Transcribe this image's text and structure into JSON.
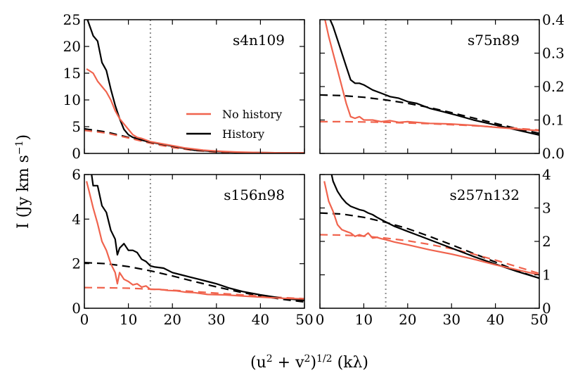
{
  "figure": {
    "ylabel": "I (Jy km s",
    "ylabel_sup": "−1",
    "ylabel_close": ")",
    "xlabel_a": "(u",
    "xlabel_a_sup": "2",
    "xlabel_b": " + v",
    "xlabel_b_sup": "2",
    "xlabel_c": ")",
    "xlabel_c_sup": "1/2",
    "xlabel_d": " (kλ)"
  },
  "legend": {
    "no_history": "No history",
    "history": "History"
  },
  "colors": {
    "no_history": "#f0634d",
    "history": "#000000",
    "dotted": "#8c8c8c"
  },
  "chart_data": [
    {
      "type": "line",
      "title": "s4n109",
      "xlim": [
        0,
        50
      ],
      "ylim": [
        0,
        25
      ],
      "xticks": [
        0,
        10,
        20,
        30,
        40,
        50
      ],
      "yticks": [
        0,
        5,
        10,
        15,
        20,
        25
      ],
      "ytick_side": "left",
      "vline": 15,
      "legend": "lower-right",
      "series": [
        {
          "name": "History",
          "style": "solid",
          "color": "#000000",
          "x": [
            0.5,
            2,
            3,
            4,
            5,
            6,
            7,
            8,
            9,
            10,
            11,
            12,
            13,
            14,
            15,
            17,
            19,
            21,
            23,
            25,
            27,
            29,
            32,
            35,
            40,
            45,
            50
          ],
          "y": [
            25.5,
            22,
            21,
            17,
            15.5,
            12,
            9,
            6.5,
            4.5,
            3.5,
            3,
            2.8,
            2.5,
            2.3,
            2.1,
            1.8,
            1.5,
            1.2,
            0.9,
            0.6,
            0.5,
            0.4,
            0.3,
            0.2,
            0.15,
            0.1,
            0.1
          ]
        },
        {
          "name": "No history",
          "style": "solid",
          "color": "#f0634d",
          "x": [
            0.5,
            2,
            3,
            4,
            5,
            6,
            7,
            8,
            9,
            10,
            11,
            12,
            13,
            14,
            15,
            17,
            19,
            21,
            23,
            25,
            27,
            29,
            32,
            35,
            40,
            45,
            50
          ],
          "y": [
            15.8,
            15,
            13.5,
            12.5,
            11.5,
            10,
            8,
            6.5,
            5.5,
            4.5,
            3.5,
            3,
            2.8,
            2.5,
            2.2,
            1.9,
            1.6,
            1.3,
            1.0,
            0.8,
            0.6,
            0.5,
            0.35,
            0.25,
            0.15,
            0.1,
            0.1
          ]
        },
        {
          "name": "History fit",
          "style": "dashed",
          "color": "#000000",
          "x": [
            0,
            5,
            10,
            15,
            20,
            25,
            30,
            35,
            40,
            45,
            50
          ],
          "y": [
            4.6,
            4.0,
            3.0,
            2.0,
            1.2,
            0.6,
            0.3,
            0.1,
            0.05,
            0.02,
            0.01
          ]
        },
        {
          "name": "No history fit",
          "style": "dashed",
          "color": "#f0634d",
          "x": [
            0,
            5,
            10,
            15,
            20,
            25,
            30,
            35,
            40,
            45,
            50
          ],
          "y": [
            4.3,
            3.8,
            2.9,
            1.9,
            1.1,
            0.55,
            0.25,
            0.1,
            0.05,
            0.02,
            0.01
          ]
        }
      ]
    },
    {
      "type": "line",
      "title": "s75n89",
      "xlim": [
        0,
        50
      ],
      "ylim": [
        0,
        0.4
      ],
      "xticks": [
        0,
        10,
        20,
        30,
        40,
        50
      ],
      "yticks": [
        0.0,
        0.1,
        0.2,
        0.3,
        0.4
      ],
      "ytick_side": "right",
      "vline": 15,
      "series": [
        {
          "name": "History",
          "style": "solid",
          "color": "#000000",
          "x": [
            2,
            3,
            4,
            5,
            6,
            7,
            8,
            9,
            10,
            12,
            14,
            16,
            18,
            20,
            22,
            25,
            28,
            31,
            35,
            40,
            45,
            50
          ],
          "y": [
            0.41,
            0.38,
            0.34,
            0.3,
            0.26,
            0.22,
            0.21,
            0.21,
            0.205,
            0.19,
            0.18,
            0.17,
            0.165,
            0.155,
            0.15,
            0.135,
            0.125,
            0.115,
            0.1,
            0.085,
            0.07,
            0.055
          ]
        },
        {
          "name": "No history",
          "style": "solid",
          "color": "#f0634d",
          "x": [
            1,
            2,
            3,
            4,
            5,
            6,
            7,
            8,
            9,
            10,
            12,
            14,
            16,
            18,
            20,
            25,
            30,
            35,
            40,
            45,
            50
          ],
          "y": [
            0.41,
            0.35,
            0.3,
            0.25,
            0.2,
            0.15,
            0.11,
            0.105,
            0.11,
            0.1,
            0.1,
            0.095,
            0.098,
            0.093,
            0.095,
            0.09,
            0.088,
            0.084,
            0.078,
            0.073,
            0.068
          ]
        },
        {
          "name": "History fit",
          "style": "dashed",
          "color": "#000000",
          "x": [
            0,
            5,
            10,
            15,
            20,
            25,
            30,
            35,
            40,
            45,
            50
          ],
          "y": [
            0.175,
            0.173,
            0.168,
            0.16,
            0.15,
            0.137,
            0.122,
            0.106,
            0.09,
            0.074,
            0.06
          ]
        },
        {
          "name": "No history fit",
          "style": "dashed",
          "color": "#f0634d",
          "x": [
            0,
            5,
            10,
            15,
            20,
            25,
            30,
            35,
            40,
            45,
            50
          ],
          "y": [
            0.095,
            0.095,
            0.094,
            0.093,
            0.091,
            0.089,
            0.086,
            0.083,
            0.079,
            0.075,
            0.07
          ]
        }
      ]
    },
    {
      "type": "line",
      "title": "s156n98",
      "xlim": [
        0,
        50
      ],
      "ylim": [
        0,
        6
      ],
      "xticks": [
        0,
        10,
        20,
        30,
        40,
        50
      ],
      "yticks": [
        0,
        2,
        4,
        6
      ],
      "ytick_side": "left",
      "vline": 15,
      "series": [
        {
          "name": "History",
          "style": "solid",
          "color": "#000000",
          "x": [
            1.5,
            2,
            3,
            4,
            5,
            6,
            7,
            7.5,
            8,
            9,
            10,
            11,
            12,
            13,
            14,
            15,
            16,
            18,
            20,
            22,
            24,
            26,
            28,
            30,
            33,
            36,
            40,
            45,
            50
          ],
          "y": [
            6.2,
            5.5,
            5.5,
            4.6,
            4.3,
            3.5,
            3.1,
            2.4,
            2.7,
            2.9,
            2.6,
            2.6,
            2.5,
            2.2,
            2.1,
            1.9,
            1.85,
            1.8,
            1.6,
            1.5,
            1.4,
            1.3,
            1.2,
            1.1,
            0.9,
            0.75,
            0.6,
            0.45,
            0.35
          ]
        },
        {
          "name": "No history",
          "style": "solid",
          "color": "#f0634d",
          "x": [
            0.5,
            1,
            2,
            3,
            4,
            5,
            6,
            7,
            7.5,
            8,
            9,
            10,
            11,
            12,
            13,
            14,
            15,
            17,
            19,
            21,
            23,
            25,
            28,
            32,
            36,
            40,
            45,
            50
          ],
          "y": [
            5.7,
            5.3,
            4.5,
            3.8,
            3.0,
            2.6,
            2.0,
            1.6,
            1.1,
            1.6,
            1.3,
            1.2,
            1.05,
            1.1,
            0.95,
            1.0,
            0.85,
            0.85,
            0.8,
            0.78,
            0.72,
            0.7,
            0.62,
            0.6,
            0.55,
            0.5,
            0.45,
            0.42
          ]
        },
        {
          "name": "History fit",
          "style": "dashed",
          "color": "#000000",
          "x": [
            0,
            5,
            10,
            15,
            20,
            25,
            30,
            35,
            40,
            45,
            50
          ],
          "y": [
            2.05,
            2.0,
            1.87,
            1.68,
            1.45,
            1.2,
            0.96,
            0.74,
            0.55,
            0.4,
            0.28
          ]
        },
        {
          "name": "No history fit",
          "style": "dashed",
          "color": "#f0634d",
          "x": [
            0,
            5,
            10,
            15,
            20,
            25,
            30,
            35,
            40,
            45,
            50
          ],
          "y": [
            0.93,
            0.92,
            0.9,
            0.86,
            0.81,
            0.75,
            0.68,
            0.61,
            0.54,
            0.48,
            0.43
          ]
        }
      ]
    },
    {
      "type": "line",
      "title": "s257n132",
      "xlim": [
        0,
        50
      ],
      "ylim": [
        0,
        4
      ],
      "xticks": [
        0,
        10,
        20,
        30,
        40,
        50
      ],
      "yticks": [
        0,
        1,
        2,
        3,
        4
      ],
      "ytick_side": "right",
      "vline": 15,
      "series": [
        {
          "name": "History",
          "style": "solid",
          "color": "#000000",
          "x": [
            2.5,
            3,
            4,
            5,
            6,
            7,
            8,
            9,
            10,
            11,
            12,
            13,
            14,
            15,
            17,
            20,
            23,
            26,
            30,
            35,
            40,
            45,
            50
          ],
          "y": [
            4.1,
            3.8,
            3.5,
            3.3,
            3.15,
            3.05,
            3.0,
            2.95,
            2.92,
            2.85,
            2.8,
            2.72,
            2.65,
            2.58,
            2.45,
            2.3,
            2.15,
            2.0,
            1.8,
            1.55,
            1.32,
            1.1,
            0.9
          ]
        },
        {
          "name": "No history",
          "style": "solid",
          "color": "#f0634d",
          "x": [
            1,
            2,
            3,
            4,
            5,
            6,
            7,
            8,
            9,
            10,
            11,
            12,
            13,
            14,
            15,
            17,
            20,
            25,
            30,
            35,
            40,
            45,
            50
          ],
          "y": [
            3.8,
            3.2,
            2.9,
            2.5,
            2.35,
            2.3,
            2.25,
            2.15,
            2.2,
            2.15,
            2.25,
            2.1,
            2.12,
            2.08,
            2.05,
            1.98,
            1.9,
            1.75,
            1.62,
            1.47,
            1.3,
            1.15,
            1.0
          ]
        },
        {
          "name": "History fit",
          "style": "dashed",
          "color": "#000000",
          "x": [
            0,
            5,
            10,
            15,
            20,
            25,
            30,
            35,
            40,
            45,
            50
          ],
          "y": [
            2.85,
            2.82,
            2.72,
            2.57,
            2.38,
            2.15,
            1.9,
            1.64,
            1.38,
            1.12,
            0.9
          ]
        },
        {
          "name": "No history fit",
          "style": "dashed",
          "color": "#f0634d",
          "x": [
            0,
            5,
            10,
            15,
            20,
            25,
            30,
            35,
            40,
            45,
            50
          ],
          "y": [
            2.2,
            2.19,
            2.16,
            2.1,
            2.02,
            1.91,
            1.78,
            1.62,
            1.44,
            1.24,
            1.04
          ]
        }
      ]
    }
  ]
}
